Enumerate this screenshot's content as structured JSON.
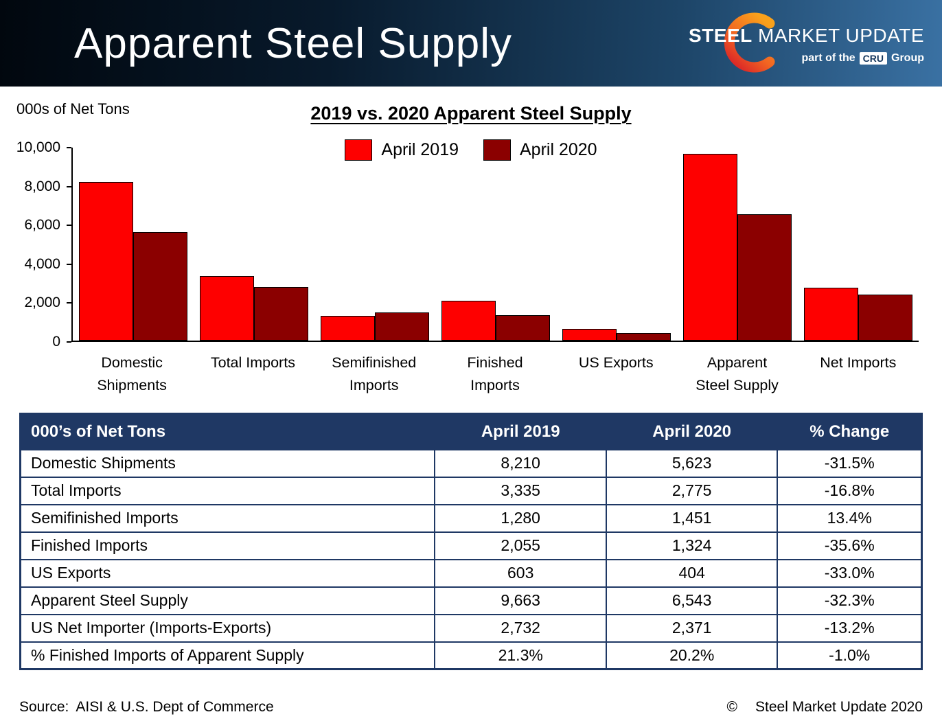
{
  "header": {
    "title": "Apparent Steel Supply",
    "logo": {
      "brand_bold": "STEEL",
      "brand_rest": " MARKET UPDATE",
      "tagline_prefix": "part of the",
      "tagline_badge": "CRU",
      "tagline_suffix": "Group"
    }
  },
  "chart": {
    "units_label": "000s of Net Tons"
  },
  "chart_data": {
    "type": "bar",
    "title": "2019 vs. 2020 Apparent Steel Supply",
    "categories": [
      "Domestic Shipments",
      "Total Imports",
      "Semifinished Imports",
      "Finished Imports",
      "US Exports",
      "Apparent Steel Supply",
      "Net Imports"
    ],
    "categories_display": [
      "Domestic\nShipments",
      "Total Imports",
      "Semifinished\nImports",
      "Finished\nImports",
      "US Exports",
      "Apparent\nSteel Supply",
      "Net Imports"
    ],
    "series": [
      {
        "name": "April 2019",
        "color": "#fe0000",
        "values": [
          8210,
          3335,
          1280,
          2055,
          603,
          9663,
          2732
        ]
      },
      {
        "name": "April 2020",
        "color": "#8b0000",
        "values": [
          5623,
          2775,
          1451,
          1324,
          404,
          6543,
          2371
        ]
      }
    ],
    "xlabel": "",
    "ylabel": "000s of Net Tons",
    "ylim": [
      0,
      10000
    ],
    "yticks": [
      0,
      2000,
      4000,
      6000,
      8000,
      10000
    ],
    "grid": false,
    "legend_position": "top-center"
  },
  "table": {
    "headers": [
      "000’s of Net Tons",
      "April 2019",
      "April 2020",
      "% Change"
    ],
    "rows": [
      [
        "Domestic Shipments",
        "8,210",
        "5,623",
        "-31.5%"
      ],
      [
        "Total Imports",
        "3,335",
        "2,775",
        "-16.8%"
      ],
      [
        "Semifinished Imports",
        "1,280",
        "1,451",
        "13.4%"
      ],
      [
        "Finished Imports",
        "2,055",
        "1,324",
        "-35.6%"
      ],
      [
        "US Exports",
        "603",
        "404",
        "-33.0%"
      ],
      [
        "Apparent Steel Supply",
        "9,663",
        "6,543",
        "-32.3%"
      ],
      [
        "US Net Importer (Imports-Exports)",
        "2,732",
        "2,371",
        "-13.2%"
      ],
      [
        "% Finished Imports of Apparent Supply",
        "21.3%",
        "20.2%",
        "-1.0%"
      ]
    ]
  },
  "footer": {
    "source_label": "Source:",
    "source_text": "AISI & U.S. Dept of Commerce",
    "copyright_symbol": "©",
    "copyright_text": "Steel Market Update 2020"
  },
  "colors": {
    "table_header_bg": "#1f3864",
    "banner_dark": "#01070e",
    "banner_light": "#3a71a3",
    "bar_2019": "#fe0000",
    "bar_2020": "#8b0000"
  }
}
